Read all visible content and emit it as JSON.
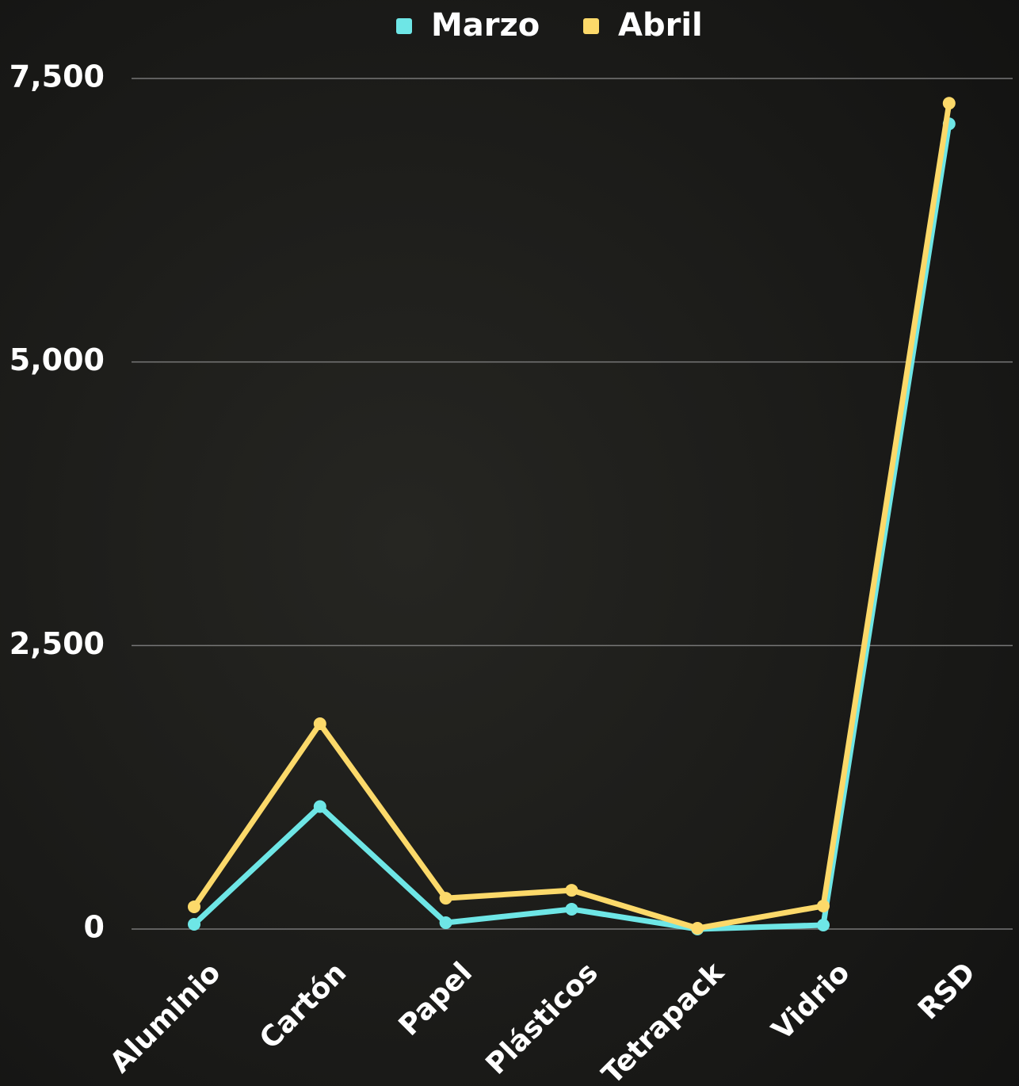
{
  "chart_data": {
    "type": "line",
    "categories": [
      "Aluminio",
      "Cartón",
      "Papel",
      "Plásticos",
      "Tetrapack",
      "Vidrio",
      "RSD"
    ],
    "series": [
      {
        "name": "Marzo",
        "color": "#6ee6e6",
        "values": [
          42,
          1080,
          56,
          175,
          0,
          35,
          7100
        ]
      },
      {
        "name": "Abril",
        "color": "#fcd96a",
        "values": [
          196,
          1810,
          272,
          342,
          7,
          203,
          7282
        ]
      }
    ],
    "ylim": [
      0,
      7500
    ],
    "yticks": [
      0,
      {
        "value": 2500,
        "label": "2,500"
      },
      {
        "value": 5000,
        "label": "5,000"
      },
      {
        "value": 7500,
        "label": "7,500"
      }
    ],
    "grid": true,
    "legend": "top"
  }
}
